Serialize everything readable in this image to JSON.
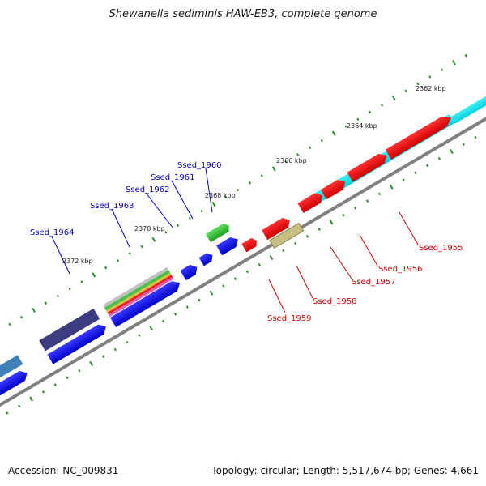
{
  "title": "Shewanella sediminis HAW-EB3, complete genome",
  "footer": {
    "accession": "Accession: NC_009831",
    "summary": "Topology: circular; Length: 5,517,674 bp; Genes: 4,661"
  },
  "ruler_labels": [
    "2362 kbp",
    "2364 kbp",
    "2366 kbp",
    "2368 kbp",
    "2370 kbp",
    "2372 kbp"
  ],
  "gene_labels_top": [
    "Ssed_1960",
    "Ssed_1961",
    "Ssed_1962",
    "Ssed_1963",
    "Ssed_1964"
  ],
  "gene_labels_bottom": [
    "Ssed_1955",
    "Ssed_1956",
    "Ssed_1957",
    "Ssed_1958",
    "Ssed_1959"
  ],
  "colors": {
    "backbone": "#7f7f7f",
    "tick": "#2e8b2e",
    "gene_blue": "#0000ee",
    "gene_red": "#ee0000",
    "gene_cyan": "#00e5ee",
    "label_top": "#0000cc",
    "label_bottom": "#dd0000"
  }
}
